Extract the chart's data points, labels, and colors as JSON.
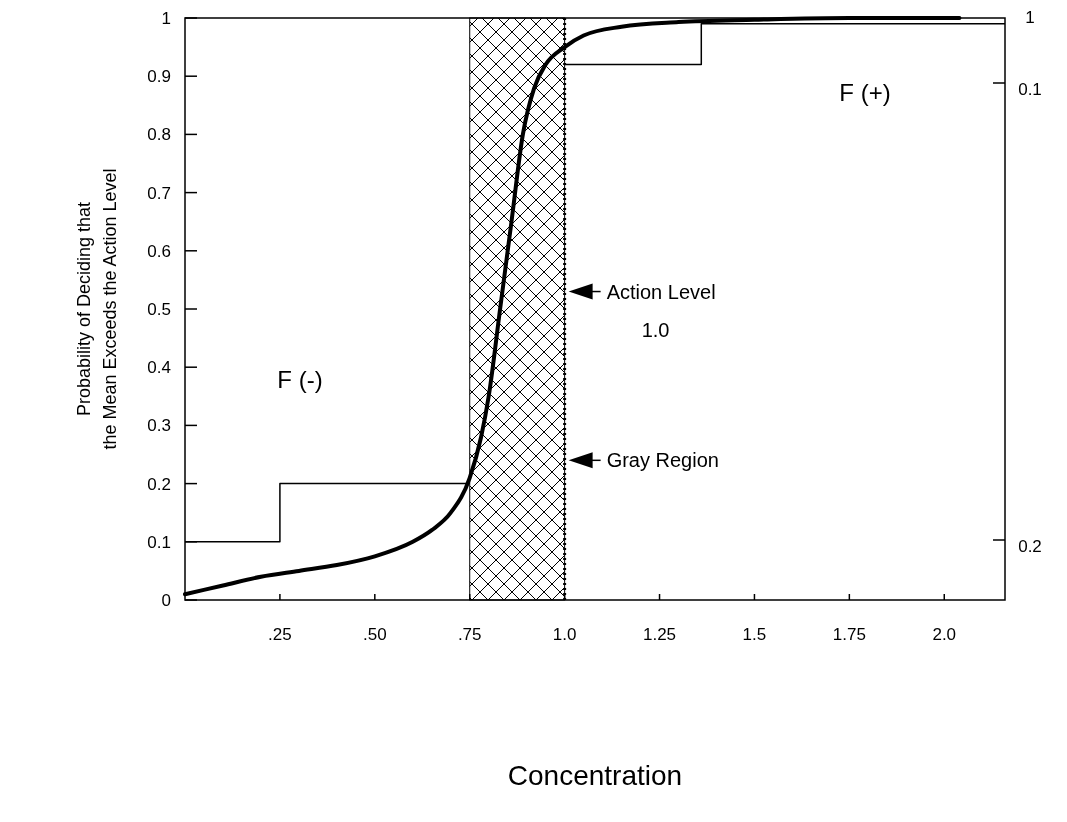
{
  "chart_data": {
    "type": "line",
    "xlabel": "Concentration",
    "ylabel": "Probability of Deciding that\nthe Mean Exceeds the Action Level",
    "xlim": [
      0,
      2.16
    ],
    "ylim": [
      0,
      1
    ],
    "xticks": [
      {
        "value": 0.25,
        "label": ".25"
      },
      {
        "value": 0.5,
        "label": ".50"
      },
      {
        "value": 0.75,
        "label": ".75"
      },
      {
        "value": 1,
        "label": "1.0"
      },
      1.25,
      1.5,
      1.75,
      {
        "value": 2,
        "label": "2.0"
      }
    ],
    "yticks": [
      0,
      0.1,
      0.2,
      0.3,
      0.4,
      0.5,
      0.6,
      0.7,
      0.8,
      0.9,
      1
    ],
    "grid": false,
    "series": [
      {
        "color": "#000000",
        "x": [
          0,
          0.1,
          0.2,
          0.3,
          0.4,
          0.5,
          0.6,
          0.65,
          0.7,
          0.75,
          0.78,
          0.8,
          0.83,
          0.86,
          0.89,
          0.92,
          0.95,
          1.0,
          1.05,
          1.15,
          1.3,
          1.5,
          1.75,
          2.04
        ],
        "values": [
          0.01,
          0.025,
          0.04,
          0.05,
          0.06,
          0.075,
          0.1,
          0.12,
          0.15,
          0.21,
          0.28,
          0.35,
          0.5,
          0.65,
          0.8,
          0.88,
          0.92,
          0.95,
          0.97,
          0.985,
          0.993,
          0.997,
          1.0,
          1.0
        ]
      },
      {
        "type": "step",
        "color": "#000000",
        "x": [
          0,
          0.25,
          0.75
        ],
        "values": [
          0.1,
          0.2,
          0.2
        ]
      },
      {
        "type": "step",
        "color": "#000000",
        "x": [
          1.0,
          1.36,
          2.16
        ],
        "values": [
          0.92,
          0.99,
          0.99
        ]
      }
    ],
    "ref_lines": [
      {
        "axis": "x",
        "value": 1.0,
        "label": "Action Level\n1.0",
        "line_style": "dotted",
        "color": "#000000"
      }
    ],
    "bands": [
      {
        "axis": "x",
        "from": 0.75,
        "to": 1.0,
        "label": "Gray Region",
        "color": "#000000"
      }
    ],
    "annotations": [
      "F (-)",
      "F (+)",
      "1",
      "0.1",
      "0.2"
    ]
  }
}
